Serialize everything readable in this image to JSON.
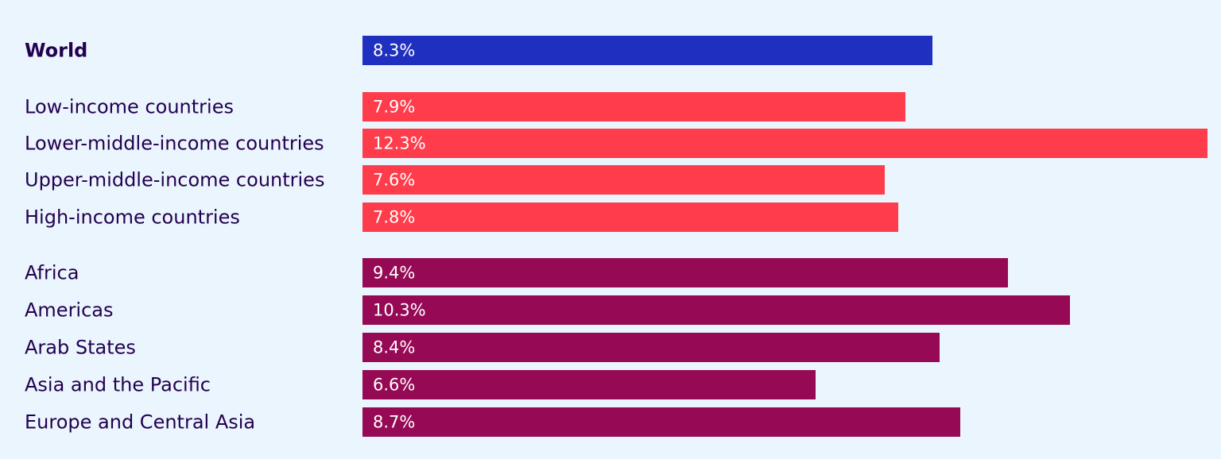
{
  "chart_data": {
    "type": "bar",
    "orientation": "horizontal",
    "title": "",
    "xlabel": "",
    "ylabel": "",
    "value_suffix": "%",
    "xlim": [
      0,
      12.3
    ],
    "grid": false,
    "colors": {
      "world": "#1f2fbf",
      "income": "#ff3c4b",
      "region": "#960a55",
      "label_text": "#230050",
      "value_text": "#ffffff",
      "background": "#eaf5fd"
    },
    "groups": [
      {
        "name": "world",
        "items": [
          {
            "category": "World",
            "value": 8.3,
            "label": "8.3%",
            "bold": true
          }
        ]
      },
      {
        "name": "income",
        "items": [
          {
            "category": "Low-income countries",
            "value": 7.9,
            "label": "7.9%"
          },
          {
            "category": "Lower-middle-income countries",
            "value": 12.3,
            "label": "12.3%"
          },
          {
            "category": "Upper-middle-income countries",
            "value": 7.6,
            "label": "7.6%"
          },
          {
            "category": "High-income countries",
            "value": 7.8,
            "label": "7.8%"
          }
        ]
      },
      {
        "name": "region",
        "items": [
          {
            "category": "Africa",
            "value": 9.4,
            "label": "9.4%"
          },
          {
            "category": "Americas",
            "value": 10.3,
            "label": "10.3%"
          },
          {
            "category": "Arab States",
            "value": 8.4,
            "label": "8.4%"
          },
          {
            "category": "Asia and the Pacific",
            "value": 6.6,
            "label": "6.6%"
          },
          {
            "category": "Europe and Central Asia",
            "value": 8.7,
            "label": "8.7%"
          }
        ]
      }
    ]
  }
}
